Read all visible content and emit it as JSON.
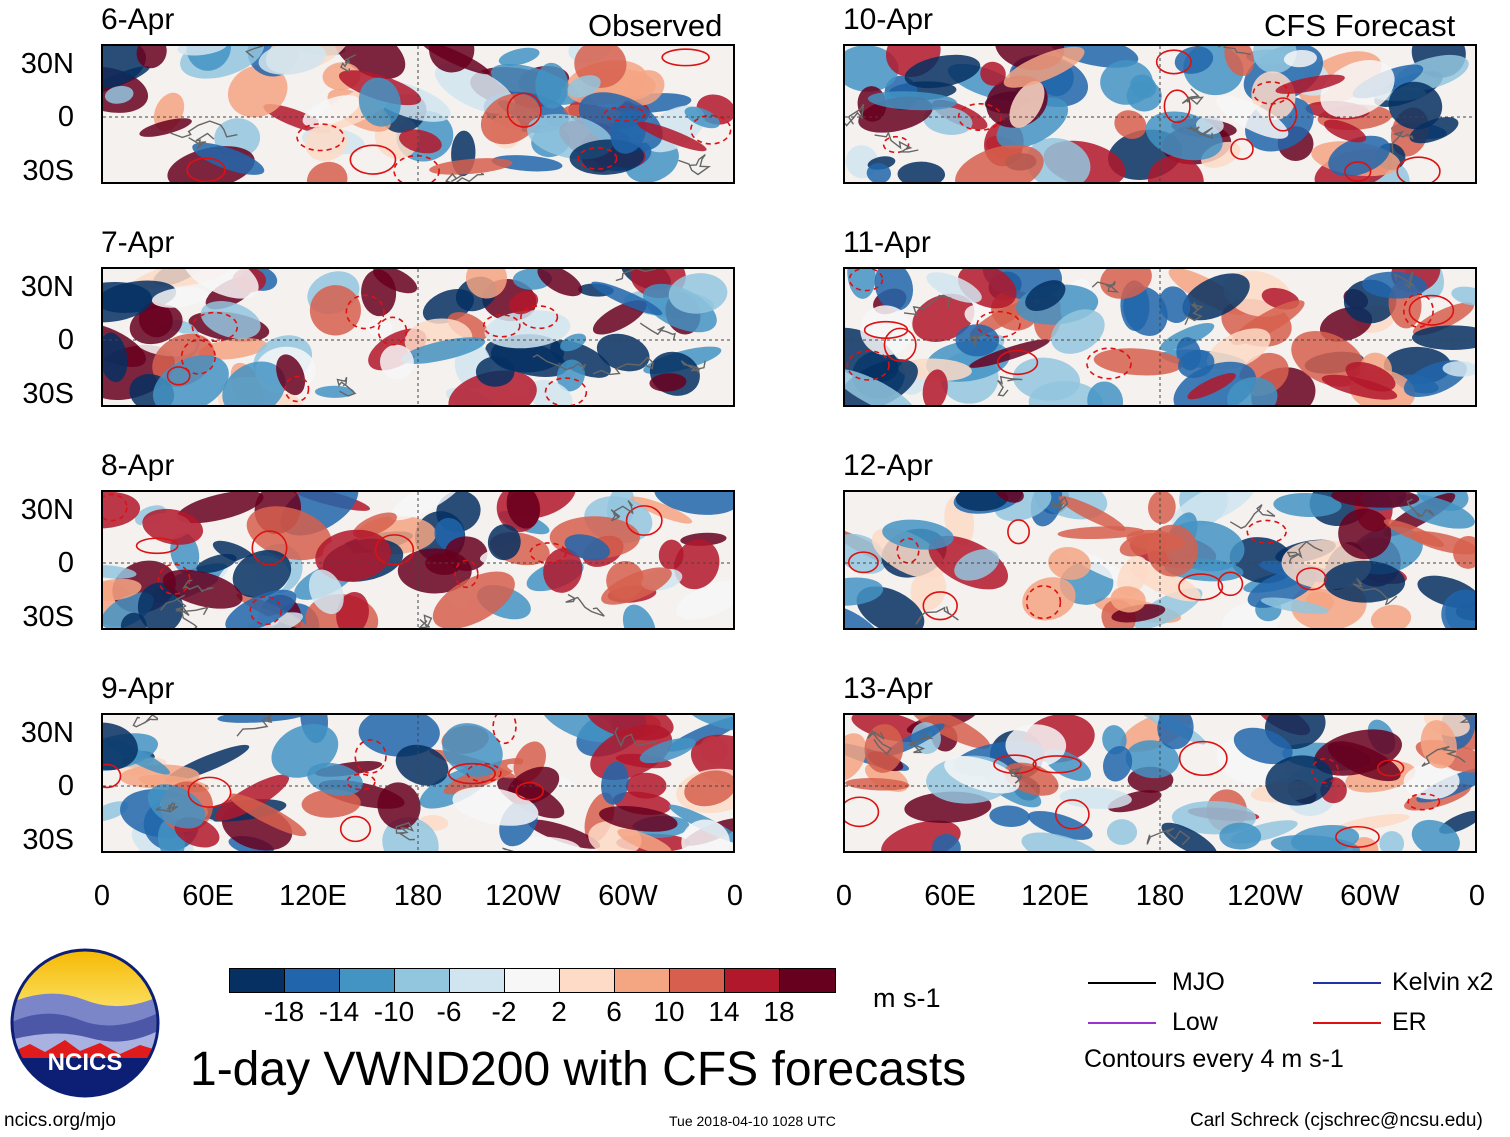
{
  "observed_title": "Observed",
  "forecast_title": "CFS Forecast",
  "observed_dates": [
    "6-Apr",
    "7-Apr",
    "8-Apr",
    "9-Apr"
  ],
  "forecast_dates": [
    "10-Apr",
    "11-Apr",
    "12-Apr",
    "13-Apr"
  ],
  "lat_labels": [
    "30N",
    "0",
    "30S"
  ],
  "lon_labels": [
    "0",
    "60E",
    "120E",
    "180",
    "120W",
    "60W",
    "0"
  ],
  "colorbar": {
    "colors": [
      "#053061",
      "#2166ac",
      "#4393c3",
      "#92c5de",
      "#d1e5f0",
      "#f7f7f7",
      "#fddbc7",
      "#f4a582",
      "#d6604d",
      "#b2182b",
      "#67001f"
    ],
    "labels": [
      "-18",
      "-14",
      "-10",
      "-6",
      "-2",
      "2",
      "6",
      "10",
      "14",
      "18"
    ],
    "units": "m s-1"
  },
  "legend": {
    "mjo": "MJO",
    "kelvin": "Kelvin x2",
    "low": "Low",
    "er": "ER",
    "mjo_color": "#000000",
    "kelvin_color": "#2233aa",
    "low_color": "#9933cc",
    "er_color": "#dd1111",
    "note": "Contours every 4 m s-1"
  },
  "main_title": "1-day VWND200 with CFS forecasts",
  "logo_text": "NCICS",
  "footer": {
    "left": "ncics.org/mjo",
    "center": "Tue 2018-04-10 1028 UTC",
    "right": "Carl Schreck (cjschrec@ncsu.edu)"
  }
}
